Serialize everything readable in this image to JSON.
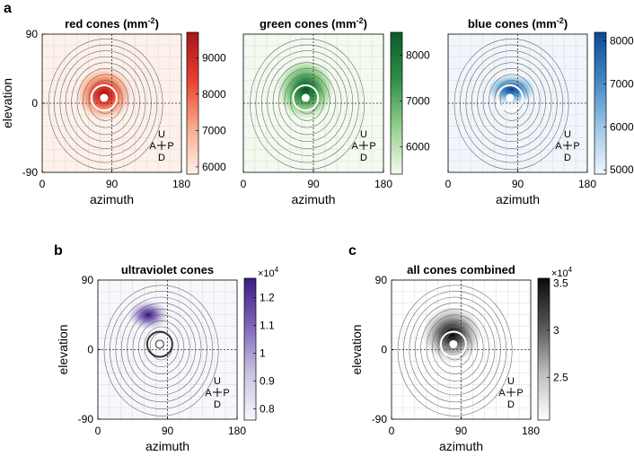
{
  "panel_letters": {
    "a": "a",
    "b": "b",
    "c": "c"
  },
  "orientation": {
    "up": "U",
    "left": "A",
    "right": "P",
    "down": "D"
  },
  "chart_data": [
    {
      "type": "heatmap",
      "panel": "a",
      "title": "red cones (mm",
      "title_sup": "-2",
      "title_close": ")",
      "xlabel": "azimuth",
      "ylabel": "elevation",
      "xlim": [
        0,
        180
      ],
      "ylim": [
        -90,
        90
      ],
      "xticks": [
        "0",
        "90",
        "180"
      ],
      "yticks": [
        "90",
        "0",
        "-90"
      ],
      "colorbar": {
        "range": [
          5800,
          9700
        ],
        "ticks": [
          "9000",
          "8000",
          "7000",
          "6000"
        ],
        "tick_values": [
          9000,
          8000,
          7000,
          6000
        ],
        "colors": [
          "#fdf1ea",
          "#f9a98a",
          "#e8402f",
          "#a8141a"
        ]
      },
      "background_color": "#fdf1ea",
      "hotspot": {
        "center": [
          80,
          12
        ],
        "sigma": [
          30,
          28
        ],
        "peak": 9700
      },
      "optic_disc": [
        80,
        7
      ],
      "grid": true,
      "orientation_key": true
    },
    {
      "type": "heatmap",
      "panel": "a",
      "title": "green cones (mm",
      "title_sup": "-2",
      "title_close": ")",
      "xlabel": "azimuth",
      "ylabel": "",
      "xlim": [
        0,
        180
      ],
      "ylim": [
        -90,
        90
      ],
      "xticks": [
        "0",
        "90",
        "180"
      ],
      "yticks": [],
      "colorbar": {
        "range": [
          5400,
          8500
        ],
        "ticks": [
          "8000",
          "7000",
          "6000"
        ],
        "tick_values": [
          8000,
          7000,
          6000
        ],
        "colors": [
          "#f3fbef",
          "#93cf8b",
          "#2f8f47",
          "#0c5a28"
        ]
      },
      "background_color": "#f3fbef",
      "hotspot": {
        "center": [
          80,
          18
        ],
        "sigma": [
          30,
          32
        ],
        "peak": 8500
      },
      "optic_disc": [
        80,
        7
      ],
      "grid": true,
      "orientation_key": true
    },
    {
      "type": "heatmap",
      "panel": "a",
      "title": "blue cones (mm",
      "title_sup": "-2",
      "title_close": ")",
      "xlabel": "azimuth",
      "ylabel": "",
      "xlim": [
        0,
        180
      ],
      "ylim": [
        -90,
        90
      ],
      "xticks": [
        "0",
        "90",
        "180"
      ],
      "yticks": [],
      "colorbar": {
        "range": [
          4900,
          8200
        ],
        "ticks": [
          "8000",
          "7000",
          "6000",
          "5000"
        ],
        "tick_values": [
          8000,
          7000,
          6000,
          5000
        ],
        "colors": [
          "#f0f6fc",
          "#9cc6e6",
          "#3f86c3",
          "#0a4a93"
        ]
      },
      "background_color": "#f0f6fc",
      "hotspot": {
        "center": [
          82,
          18
        ],
        "sigma": [
          26,
          16
        ],
        "peak": 8200
      },
      "optic_disc": [
        80,
        7
      ],
      "grid": true,
      "orientation_key": true
    },
    {
      "type": "heatmap",
      "panel": "b",
      "title": "ultraviolet cones",
      "title_sup": "",
      "title_close": "",
      "exponent_base": "×10",
      "exponent_power": "4",
      "xlabel": "azimuth",
      "ylabel": "elevation",
      "xlim": [
        0,
        180
      ],
      "ylim": [
        -90,
        90
      ],
      "xticks": [
        "0",
        "90",
        "180"
      ],
      "yticks": [
        "90",
        "0",
        "-90"
      ],
      "colorbar": {
        "range": [
          0.76,
          1.27
        ],
        "ticks": [
          "1.2",
          "1.1",
          "1",
          "0.9",
          "0.8"
        ],
        "tick_values": [
          1.2,
          1.1,
          1.0,
          0.9,
          0.8
        ],
        "colors": [
          "#f8f7fc",
          "#c9c2e2",
          "#7e66b7",
          "#3d1a86"
        ]
      },
      "background_color": "#f8f7fc",
      "hotspot": {
        "center": [
          65,
          45
        ],
        "sigma": [
          22,
          16
        ],
        "peak": 1.27
      },
      "optic_disc": [
        80,
        7
      ],
      "grid": true,
      "orientation_key": true
    },
    {
      "type": "heatmap",
      "panel": "c",
      "title": "all cones combined",
      "title_sup": "",
      "title_close": "",
      "exponent_base": "×10",
      "exponent_power": "4",
      "xlabel": "azimuth",
      "ylabel": "elevation",
      "xlim": [
        0,
        180
      ],
      "ylim": [
        -90,
        90
      ],
      "xticks": [
        "0",
        "90",
        "180"
      ],
      "yticks": [
        "90",
        "0",
        "-90"
      ],
      "colorbar": {
        "range": [
          2.05,
          3.55
        ],
        "ticks": [
          "3.5",
          "3",
          "2.5"
        ],
        "tick_values": [
          3.5,
          3.0,
          2.5
        ],
        "colors": [
          "#ffffff",
          "#bdbdbd",
          "#555555",
          "#0a0a0a"
        ]
      },
      "background_color": "#ffffff",
      "hotspot": {
        "center": [
          78,
          20
        ],
        "sigma": [
          32,
          30
        ],
        "peak": 3.55
      },
      "optic_disc": [
        80,
        7
      ],
      "grid": true,
      "orientation_key": true
    }
  ]
}
